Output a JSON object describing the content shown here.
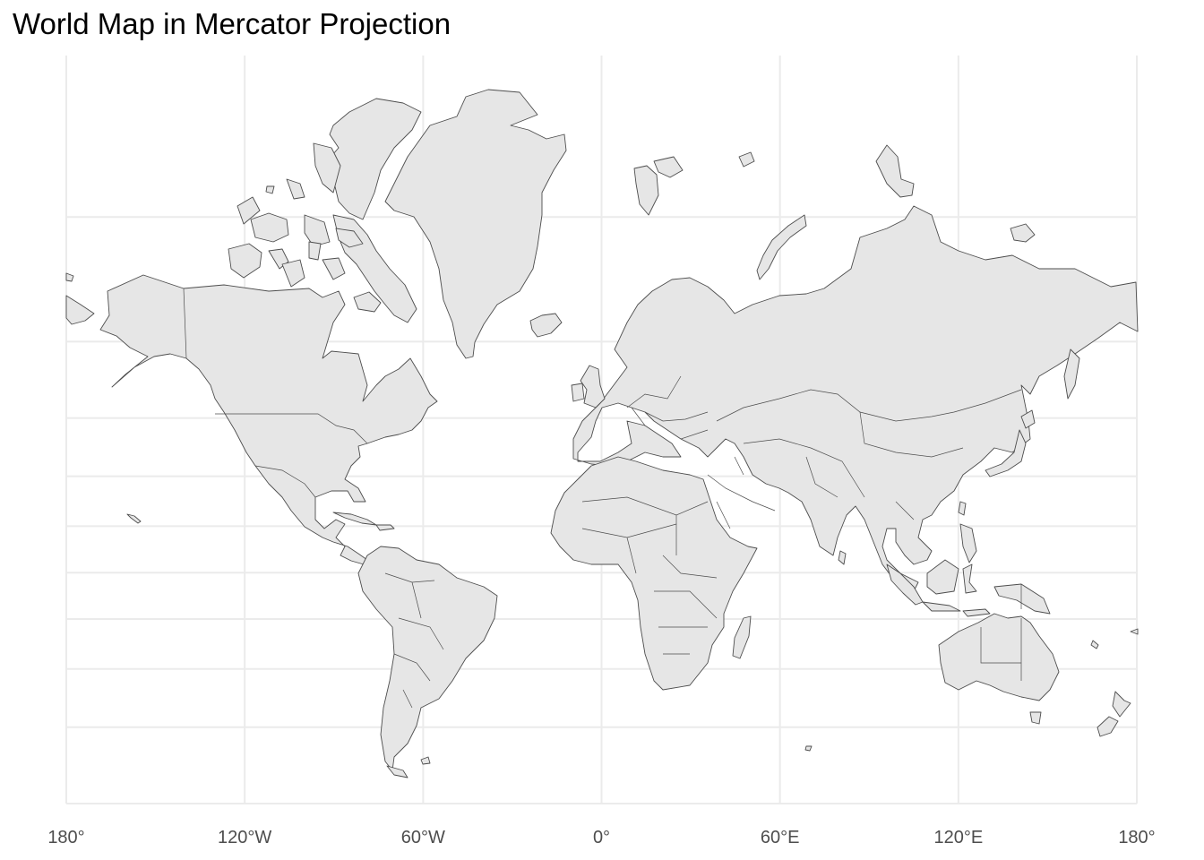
{
  "map": {
    "title": "World Map in Mercator Projection",
    "projection": "mercator",
    "lon_range": [
      -180,
      180
    ],
    "lat_range": [
      -60,
      84
    ],
    "colors": {
      "land": "#e6e6e6",
      "border": "#4d4d4d",
      "grid": "#ebebeb",
      "background": "#ffffff"
    },
    "x_ticks": [
      {
        "lon": -180,
        "label": "180°"
      },
      {
        "lon": -120,
        "label": "120°W"
      },
      {
        "lon": -60,
        "label": "60°W"
      },
      {
        "lon": 0,
        "label": "0°"
      },
      {
        "lon": 60,
        "label": "60°E"
      },
      {
        "lon": 120,
        "label": "120°E"
      },
      {
        "lon": 180,
        "label": "180°"
      }
    ],
    "lat_gridlines": [
      75,
      60,
      45,
      30,
      15,
      0,
      -15,
      -30,
      -45,
      -60
    ]
  },
  "chart_data": {
    "type": "map",
    "title": "World Map in Mercator Projection",
    "xlabel": "",
    "ylabel": "",
    "x_tick_labels": [
      "180°",
      "120°W",
      "60°W",
      "0°",
      "60°E",
      "120°E",
      "180°"
    ],
    "grid": true
  }
}
